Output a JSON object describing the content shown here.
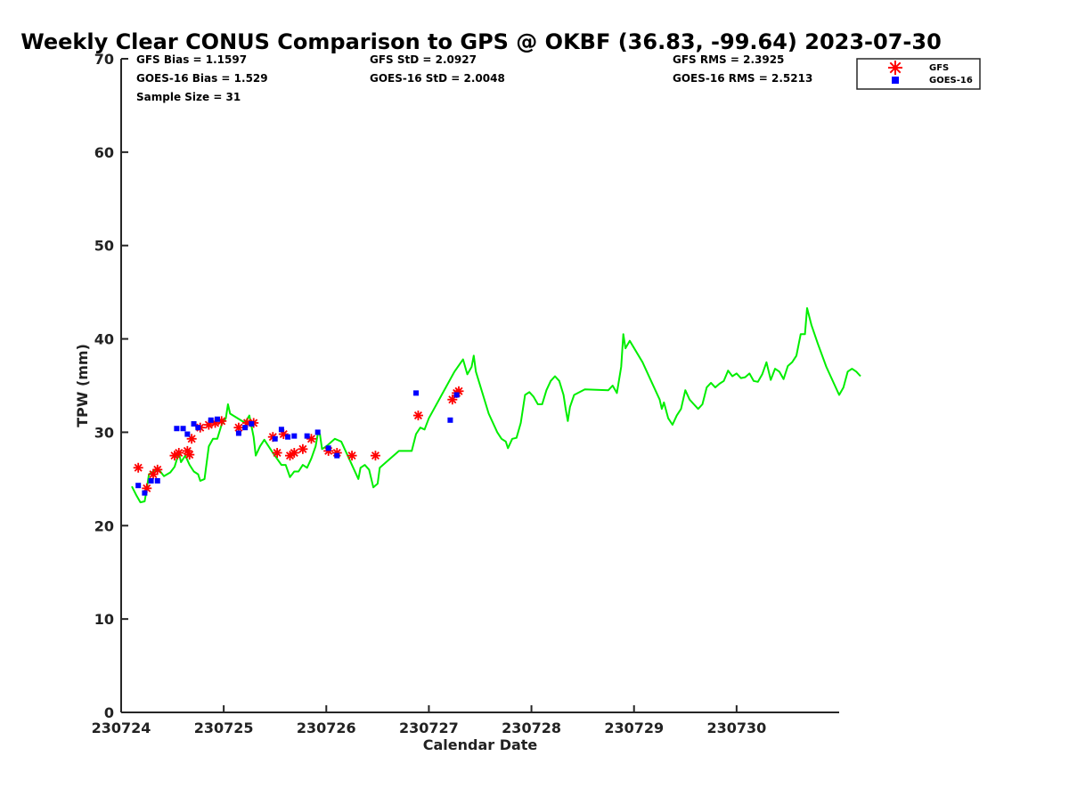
{
  "chart_data": {
    "type": "scatter",
    "title": "Weekly Clear CONUS Comparison to GPS @ OKBF (36.83, -99.64) 2023-07-30",
    "xlabel": "Calendar Date",
    "ylabel": "TPW (mm)",
    "xlim": [
      "2023-07-24",
      "2023-07-31"
    ],
    "ylim": [
      0,
      70
    ],
    "x_ticks": [
      {
        "date": "2023-07-24",
        "label": "230724"
      },
      {
        "date": "2023-07-25",
        "label": "230725"
      },
      {
        "date": "2023-07-26",
        "label": "230726"
      },
      {
        "date": "2023-07-27",
        "label": "230727"
      },
      {
        "date": "2023-07-28",
        "label": "230728"
      },
      {
        "date": "2023-07-29",
        "label": "230729"
      },
      {
        "date": "2023-07-30",
        "label": "230730"
      }
    ],
    "y_ticks": [
      0,
      10,
      20,
      30,
      40,
      50,
      60,
      70
    ],
    "grid": false,
    "legend_position": "top-right",
    "stats": {
      "gfs_bias": "GFS Bias = 1.1597",
      "goes_bias": "GOES-16 Bias = 1.529",
      "sample_size": "Sample Size = 31",
      "gfs_std": "GFS StD = 2.0927",
      "goes_std": "GOES-16 StD = 2.0048",
      "gfs_rms": "GFS RMS = 2.3925",
      "goes_rms": "GOES-16 RMS = 2.5213"
    },
    "series": [
      {
        "name": "GFS",
        "marker": "asterisk",
        "color": "#ff0000",
        "points": [
          [
            "2023-07-24T04:00",
            26.2
          ],
          [
            "2023-07-24T06:00",
            24.0
          ],
          [
            "2023-07-24T07:30",
            25.5
          ],
          [
            "2023-07-24T08:30",
            26.0
          ],
          [
            "2023-07-24T12:30",
            27.5
          ],
          [
            "2023-07-24T13:30",
            27.8
          ],
          [
            "2023-07-24T15:30",
            28.0
          ],
          [
            "2023-07-24T16:00",
            27.6
          ],
          [
            "2023-07-24T16:30",
            29.3
          ],
          [
            "2023-07-24T18:30",
            30.5
          ],
          [
            "2023-07-24T20:30",
            30.8
          ],
          [
            "2023-07-24T22:00",
            31.0
          ],
          [
            "2023-07-24T23:30",
            31.2
          ],
          [
            "2023-07-25T03:30",
            30.5
          ],
          [
            "2023-07-25T05:30",
            31.0
          ],
          [
            "2023-07-25T07:00",
            31.0
          ],
          [
            "2023-07-25T11:30",
            29.5
          ],
          [
            "2023-07-25T12:30",
            27.8
          ],
          [
            "2023-07-25T14:00",
            29.8
          ],
          [
            "2023-07-25T15:30",
            27.5
          ],
          [
            "2023-07-25T16:30",
            27.8
          ],
          [
            "2023-07-25T18:30",
            28.2
          ],
          [
            "2023-07-25T20:30",
            29.3
          ],
          [
            "2023-07-26T00:30",
            28.0
          ],
          [
            "2023-07-26T02:30",
            27.8
          ],
          [
            "2023-07-26T06:00",
            27.5
          ],
          [
            "2023-07-26T11:30",
            27.5
          ],
          [
            "2023-07-26T21:30",
            31.8
          ],
          [
            "2023-07-27T05:30",
            33.5
          ],
          [
            "2023-07-27T06:30",
            34.2
          ],
          [
            "2023-07-27T07:00",
            34.4
          ]
        ]
      },
      {
        "name": "GOES-16",
        "marker": "square",
        "color": "#0000ff",
        "points": [
          [
            "2023-07-24T04:00",
            24.3
          ],
          [
            "2023-07-24T05:30",
            23.5
          ],
          [
            "2023-07-24T07:00",
            24.8
          ],
          [
            "2023-07-24T08:30",
            24.8
          ],
          [
            "2023-07-24T13:00",
            30.4
          ],
          [
            "2023-07-24T14:30",
            30.4
          ],
          [
            "2023-07-24T15:30",
            29.8
          ],
          [
            "2023-07-24T17:00",
            30.9
          ],
          [
            "2023-07-24T18:00",
            30.5
          ],
          [
            "2023-07-24T21:00",
            31.3
          ],
          [
            "2023-07-24T22:30",
            31.4
          ],
          [
            "2023-07-25T03:30",
            29.9
          ],
          [
            "2023-07-25T05:00",
            30.5
          ],
          [
            "2023-07-25T06:30",
            30.9
          ],
          [
            "2023-07-25T12:00",
            29.3
          ],
          [
            "2023-07-25T13:30",
            30.3
          ],
          [
            "2023-07-25T15:00",
            29.5
          ],
          [
            "2023-07-25T16:30",
            29.6
          ],
          [
            "2023-07-25T19:30",
            29.6
          ],
          [
            "2023-07-25T22:00",
            30.0
          ],
          [
            "2023-07-26T00:30",
            28.3
          ],
          [
            "2023-07-26T02:30",
            27.5
          ],
          [
            "2023-07-26T21:00",
            34.2
          ],
          [
            "2023-07-27T05:00",
            31.3
          ],
          [
            "2023-07-27T06:30",
            34.0
          ]
        ]
      },
      {
        "name": "",
        "marker": "line",
        "color": "#00ee00",
        "points": [
          [
            "2023-07-24T02:30",
            24.2
          ],
          [
            "2023-07-24T03:30",
            23.3
          ],
          [
            "2023-07-24T04:30",
            22.5
          ],
          [
            "2023-07-24T05:30",
            22.6
          ],
          [
            "2023-07-24T06:00",
            24.0
          ],
          [
            "2023-07-24T06:30",
            25.5
          ],
          [
            "2023-07-24T07:30",
            25.8
          ],
          [
            "2023-07-24T08:30",
            26.2
          ],
          [
            "2023-07-24T10:00",
            25.3
          ],
          [
            "2023-07-24T11:30",
            25.7
          ],
          [
            "2023-07-24T12:30",
            26.3
          ],
          [
            "2023-07-24T13:30",
            27.8
          ],
          [
            "2023-07-24T14:00",
            26.8
          ],
          [
            "2023-07-24T15:00",
            27.5
          ],
          [
            "2023-07-24T16:00",
            26.5
          ],
          [
            "2023-07-24T17:00",
            25.8
          ],
          [
            "2023-07-24T18:00",
            25.5
          ],
          [
            "2023-07-24T18:30",
            24.8
          ],
          [
            "2023-07-24T19:30",
            25.0
          ],
          [
            "2023-07-24T20:30",
            28.5
          ],
          [
            "2023-07-24T21:30",
            29.3
          ],
          [
            "2023-07-24T22:30",
            29.3
          ],
          [
            "2023-07-24T23:30",
            30.8
          ],
          [
            "2023-07-25T00:30",
            31.5
          ],
          [
            "2023-07-25T01:00",
            33.0
          ],
          [
            "2023-07-25T01:30",
            32.0
          ],
          [
            "2023-07-25T05:00",
            31.0
          ],
          [
            "2023-07-25T06:00",
            31.8
          ],
          [
            "2023-07-25T07:00",
            29.5
          ],
          [
            "2023-07-25T07:30",
            27.5
          ],
          [
            "2023-07-25T08:30",
            28.5
          ],
          [
            "2023-07-25T09:30",
            29.2
          ],
          [
            "2023-07-25T11:30",
            27.8
          ],
          [
            "2023-07-25T13:30",
            26.5
          ],
          [
            "2023-07-25T14:30",
            26.5
          ],
          [
            "2023-07-25T15:30",
            25.2
          ],
          [
            "2023-07-25T16:30",
            25.8
          ],
          [
            "2023-07-25T17:30",
            25.8
          ],
          [
            "2023-07-25T18:30",
            26.5
          ],
          [
            "2023-07-25T19:30",
            26.2
          ],
          [
            "2023-07-25T20:30",
            27.2
          ],
          [
            "2023-07-25T21:30",
            28.5
          ],
          [
            "2023-07-25T22:00",
            29.8
          ],
          [
            "2023-07-25T22:30",
            29.8
          ],
          [
            "2023-07-25T23:00",
            28.2
          ],
          [
            "2023-07-26T00:00",
            28.5
          ],
          [
            "2023-07-26T02:00",
            29.3
          ],
          [
            "2023-07-26T03:30",
            29.0
          ],
          [
            "2023-07-26T07:30",
            25.0
          ],
          [
            "2023-07-26T08:00",
            26.2
          ],
          [
            "2023-07-26T09:00",
            26.5
          ],
          [
            "2023-07-26T10:00",
            26.0
          ],
          [
            "2023-07-26T11:00",
            24.1
          ],
          [
            "2023-07-26T12:00",
            24.5
          ],
          [
            "2023-07-26T12:30",
            26.2
          ],
          [
            "2023-07-26T17:00",
            28.0
          ],
          [
            "2023-07-26T20:00",
            28.0
          ],
          [
            "2023-07-26T21:00",
            29.8
          ],
          [
            "2023-07-26T22:00",
            30.5
          ],
          [
            "2023-07-26T23:00",
            30.3
          ],
          [
            "2023-07-27T00:00",
            31.5
          ],
          [
            "2023-07-27T03:00",
            34.0
          ],
          [
            "2023-07-27T06:00",
            36.5
          ],
          [
            "2023-07-27T08:00",
            37.8
          ],
          [
            "2023-07-27T09:00",
            36.2
          ],
          [
            "2023-07-27T10:00",
            37.0
          ],
          [
            "2023-07-27T10:30",
            38.2
          ],
          [
            "2023-07-27T11:00",
            36.5
          ],
          [
            "2023-07-27T14:00",
            32.0
          ],
          [
            "2023-07-27T16:00",
            30.0
          ],
          [
            "2023-07-27T17:00",
            29.3
          ],
          [
            "2023-07-27T18:00",
            29.0
          ],
          [
            "2023-07-27T18:30",
            28.3
          ],
          [
            "2023-07-27T19:30",
            29.3
          ],
          [
            "2023-07-27T20:30",
            29.4
          ],
          [
            "2023-07-27T21:30",
            31.0
          ],
          [
            "2023-07-27T22:30",
            34.0
          ],
          [
            "2023-07-27T23:30",
            34.3
          ],
          [
            "2023-07-28T00:30",
            33.8
          ],
          [
            "2023-07-28T01:30",
            33.0
          ],
          [
            "2023-07-28T02:30",
            33.0
          ],
          [
            "2023-07-28T03:30",
            34.5
          ],
          [
            "2023-07-28T04:30",
            35.5
          ],
          [
            "2023-07-28T05:30",
            36.0
          ],
          [
            "2023-07-28T06:30",
            35.5
          ],
          [
            "2023-07-28T07:30",
            34.0
          ],
          [
            "2023-07-28T08:00",
            32.5
          ],
          [
            "2023-07-28T08:30",
            31.2
          ],
          [
            "2023-07-28T09:00",
            32.7
          ],
          [
            "2023-07-28T10:00",
            34.0
          ],
          [
            "2023-07-28T12:30",
            34.6
          ],
          [
            "2023-07-28T18:00",
            34.5
          ],
          [
            "2023-07-28T19:00",
            35.0
          ],
          [
            "2023-07-28T20:00",
            34.2
          ],
          [
            "2023-07-28T21:00",
            37.0
          ],
          [
            "2023-07-28T21:30",
            40.5
          ],
          [
            "2023-07-28T22:00",
            39.0
          ],
          [
            "2023-07-28T23:00",
            39.8
          ],
          [
            "2023-07-29T02:00",
            37.5
          ],
          [
            "2023-07-29T04:00",
            35.5
          ],
          [
            "2023-07-29T06:00",
            33.5
          ],
          [
            "2023-07-29T06:30",
            32.5
          ],
          [
            "2023-07-29T07:00",
            33.2
          ],
          [
            "2023-07-29T08:00",
            31.5
          ],
          [
            "2023-07-29T09:00",
            30.8
          ],
          [
            "2023-07-29T10:00",
            31.8
          ],
          [
            "2023-07-29T11:00",
            32.5
          ],
          [
            "2023-07-29T12:00",
            34.5
          ],
          [
            "2023-07-29T13:00",
            33.5
          ],
          [
            "2023-07-29T14:00",
            33.0
          ],
          [
            "2023-07-29T15:00",
            32.5
          ],
          [
            "2023-07-29T16:00",
            33.0
          ],
          [
            "2023-07-29T17:00",
            34.8
          ],
          [
            "2023-07-29T18:00",
            35.3
          ],
          [
            "2023-07-29T19:00",
            34.8
          ],
          [
            "2023-07-29T20:00",
            35.2
          ],
          [
            "2023-07-29T21:00",
            35.5
          ],
          [
            "2023-07-29T22:00",
            36.6
          ],
          [
            "2023-07-29T23:00",
            36.0
          ],
          [
            "2023-07-30T00:00",
            36.3
          ],
          [
            "2023-07-30T01:00",
            35.8
          ],
          [
            "2023-07-30T02:00",
            35.9
          ],
          [
            "2023-07-30T03:00",
            36.3
          ],
          [
            "2023-07-30T04:00",
            35.5
          ],
          [
            "2023-07-30T05:00",
            35.4
          ],
          [
            "2023-07-30T06:00",
            36.2
          ],
          [
            "2023-07-30T07:00",
            37.5
          ],
          [
            "2023-07-30T08:00",
            35.6
          ],
          [
            "2023-07-30T09:00",
            36.8
          ],
          [
            "2023-07-30T10:00",
            36.5
          ],
          [
            "2023-07-30T11:00",
            35.7
          ],
          [
            "2023-07-30T12:00",
            37.1
          ],
          [
            "2023-07-30T13:00",
            37.5
          ],
          [
            "2023-07-30T14:00",
            38.2
          ],
          [
            "2023-07-30T15:00",
            40.5
          ],
          [
            "2023-07-30T16:00",
            40.5
          ],
          [
            "2023-07-30T16:30",
            43.3
          ],
          [
            "2023-07-30T17:30",
            41.5
          ],
          [
            "2023-07-30T19:00",
            39.5
          ],
          [
            "2023-07-30T21:00",
            37.0
          ],
          [
            "2023-07-30T23:00",
            35.0
          ],
          [
            "2023-07-31T00:00",
            34.0
          ],
          [
            "2023-07-31T01:00",
            34.8
          ],
          [
            "2023-07-31T02:00",
            36.5
          ],
          [
            "2023-07-31T03:00",
            36.8
          ],
          [
            "2023-07-31T04:00",
            36.5
          ],
          [
            "2023-07-31T05:00",
            36.0
          ]
        ]
      }
    ]
  }
}
